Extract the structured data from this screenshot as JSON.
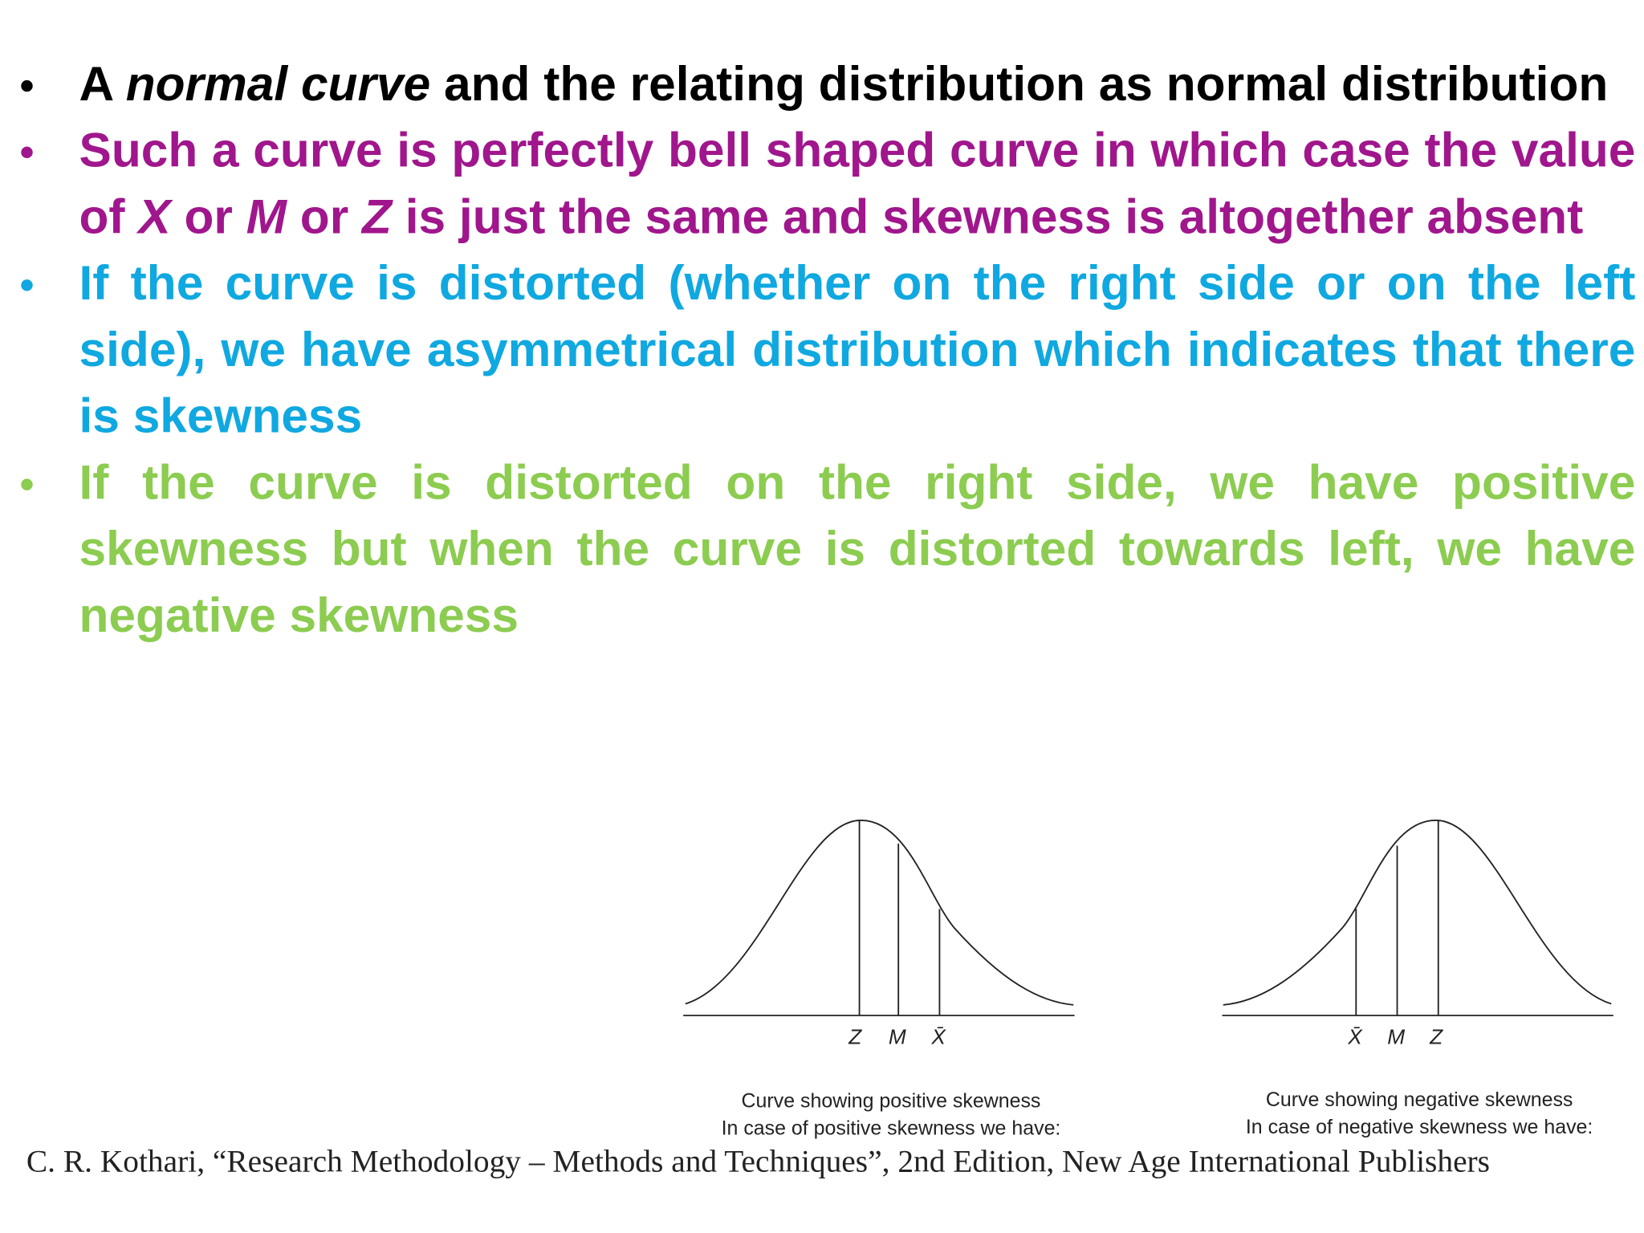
{
  "bullets": [
    {
      "parts": [
        "A ",
        "normal curve",
        " and the relating distribution as normal distribution"
      ]
    },
    {
      "parts": [
        "Such a curve is perfectly bell shaped curve in which case the value of ",
        "X",
        " or ",
        "M",
        " or ",
        "Z",
        " is just the same and skewness is altogether absent"
      ]
    },
    {
      "parts": [
        "If the curve is distorted (whether on the right side or on the left side), we have asymmetrical distribution which indicates that there is skewness"
      ]
    },
    {
      "parts": [
        "If the curve is distorted on the right side, we have positive skewness but when the curve is distorted towards left, we have negative skewness"
      ]
    }
  ],
  "figures": [
    {
      "labels": [
        "Z",
        "M",
        "X̄"
      ],
      "caption": [
        "Curve showing positive skewness",
        "In case of positive skewness we have:"
      ]
    },
    {
      "labels": [
        "X̄",
        "M",
        "Z"
      ],
      "caption": [
        "Curve showing negative skewness",
        "In case of negative skewness we have:"
      ]
    }
  ],
  "citation": "C. R. Kothari, “Research Methodology – Methods and Techniques”, 2nd Edition, New Age International Publishers"
}
